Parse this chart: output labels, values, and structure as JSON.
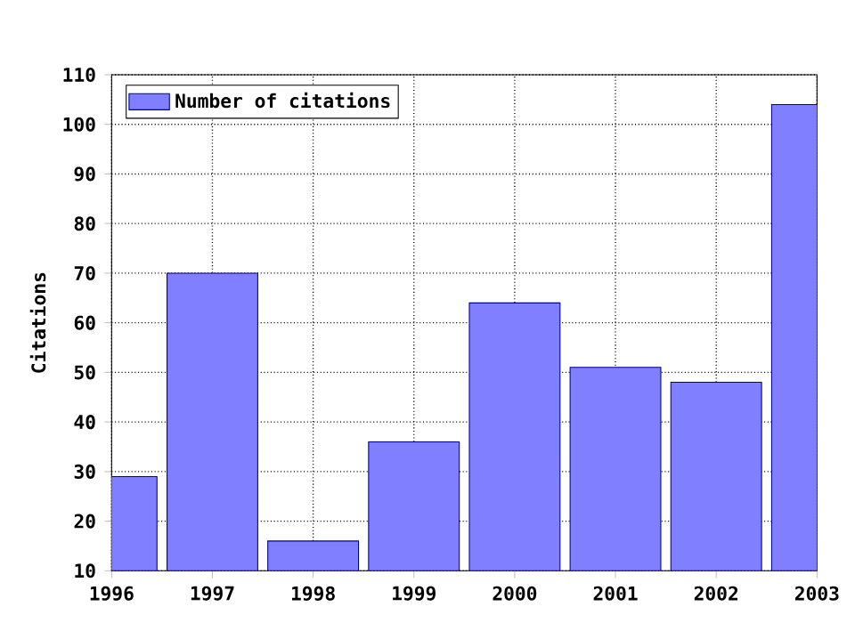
{
  "chart_data": {
    "type": "bar",
    "ylabel": "Citations",
    "x": [
      1996,
      1997,
      1998,
      1999,
      2000,
      2001,
      2002,
      2003
    ],
    "series": [
      {
        "name": "Number of citations",
        "color": "#7f7fff",
        "values": [
          29,
          70,
          16,
          36,
          64,
          51,
          48,
          104
        ]
      }
    ],
    "xlim": [
      1996,
      2003
    ],
    "xticks": [
      1996,
      1997,
      1998,
      1999,
      2000,
      2001,
      2002,
      2003
    ],
    "ylim": [
      10,
      110
    ],
    "yticks": [
      10,
      20,
      30,
      40,
      50,
      60,
      70,
      80,
      90,
      100,
      110
    ],
    "grid": true,
    "legend": "top left"
  }
}
